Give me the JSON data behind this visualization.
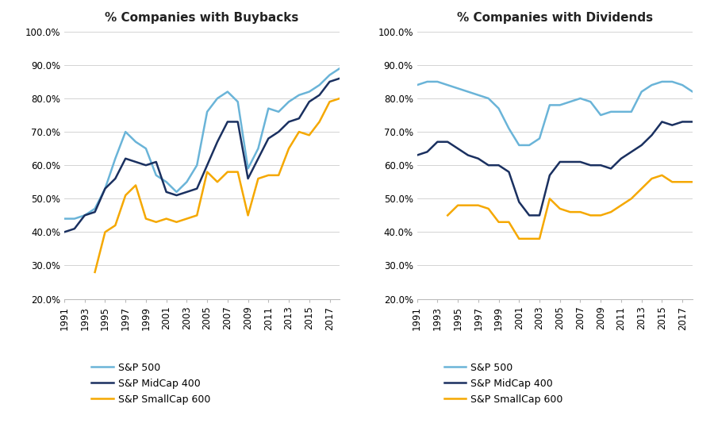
{
  "years": [
    1991,
    1992,
    1993,
    1994,
    1995,
    1996,
    1997,
    1998,
    1999,
    2000,
    2001,
    2002,
    2003,
    2004,
    2005,
    2006,
    2007,
    2008,
    2009,
    2010,
    2011,
    2012,
    2013,
    2014,
    2015,
    2016,
    2017,
    2018
  ],
  "buybacks": {
    "sp500": [
      44,
      44,
      45,
      47,
      53,
      62,
      70,
      67,
      65,
      57,
      55,
      52,
      55,
      60,
      76,
      80,
      82,
      79,
      59,
      65,
      77,
      76,
      79,
      81,
      82,
      84,
      87,
      89
    ],
    "midcap": [
      40,
      41,
      45,
      46,
      53,
      56,
      62,
      61,
      60,
      61,
      52,
      51,
      52,
      53,
      60,
      67,
      73,
      73,
      56,
      62,
      68,
      70,
      73,
      74,
      79,
      81,
      85,
      86
    ],
    "smallcap": [
      null,
      null,
      null,
      28,
      40,
      42,
      51,
      54,
      44,
      43,
      44,
      43,
      44,
      45,
      58,
      55,
      58,
      58,
      45,
      56,
      57,
      57,
      65,
      70,
      69,
      73,
      79,
      80
    ]
  },
  "dividends": {
    "sp500": [
      84,
      85,
      85,
      84,
      83,
      82,
      81,
      80,
      77,
      71,
      66,
      66,
      68,
      78,
      78,
      79,
      80,
      79,
      75,
      76,
      76,
      76,
      82,
      84,
      85,
      85,
      84,
      82
    ],
    "midcap": [
      63,
      64,
      67,
      67,
      65,
      63,
      62,
      60,
      60,
      58,
      49,
      45,
      45,
      57,
      61,
      61,
      61,
      60,
      60,
      59,
      62,
      64,
      66,
      69,
      73,
      72,
      73,
      73
    ],
    "smallcap": [
      null,
      null,
      null,
      45,
      48,
      48,
      48,
      47,
      43,
      43,
      38,
      38,
      38,
      50,
      47,
      46,
      46,
      45,
      45,
      46,
      48,
      50,
      53,
      56,
      57,
      55,
      55,
      55
    ]
  },
  "colors": {
    "sp500": "#6ab4d8",
    "midcap": "#1a3060",
    "smallcap": "#f5a800"
  },
  "title_buybacks": "% Companies with Buybacks",
  "title_dividends": "% Companies with Dividends",
  "ylim": [
    0.2,
    1.005
  ],
  "yticks": [
    0.2,
    0.3,
    0.4,
    0.5,
    0.6,
    0.7,
    0.8,
    0.9,
    1.0
  ],
  "legend_labels": [
    "S&P 500",
    "S&P MidCap 400",
    "S&P SmallCap 600"
  ],
  "linewidth": 1.8,
  "background_color": "#ffffff",
  "tick_label_fontsize": 8.5,
  "title_fontsize": 11
}
